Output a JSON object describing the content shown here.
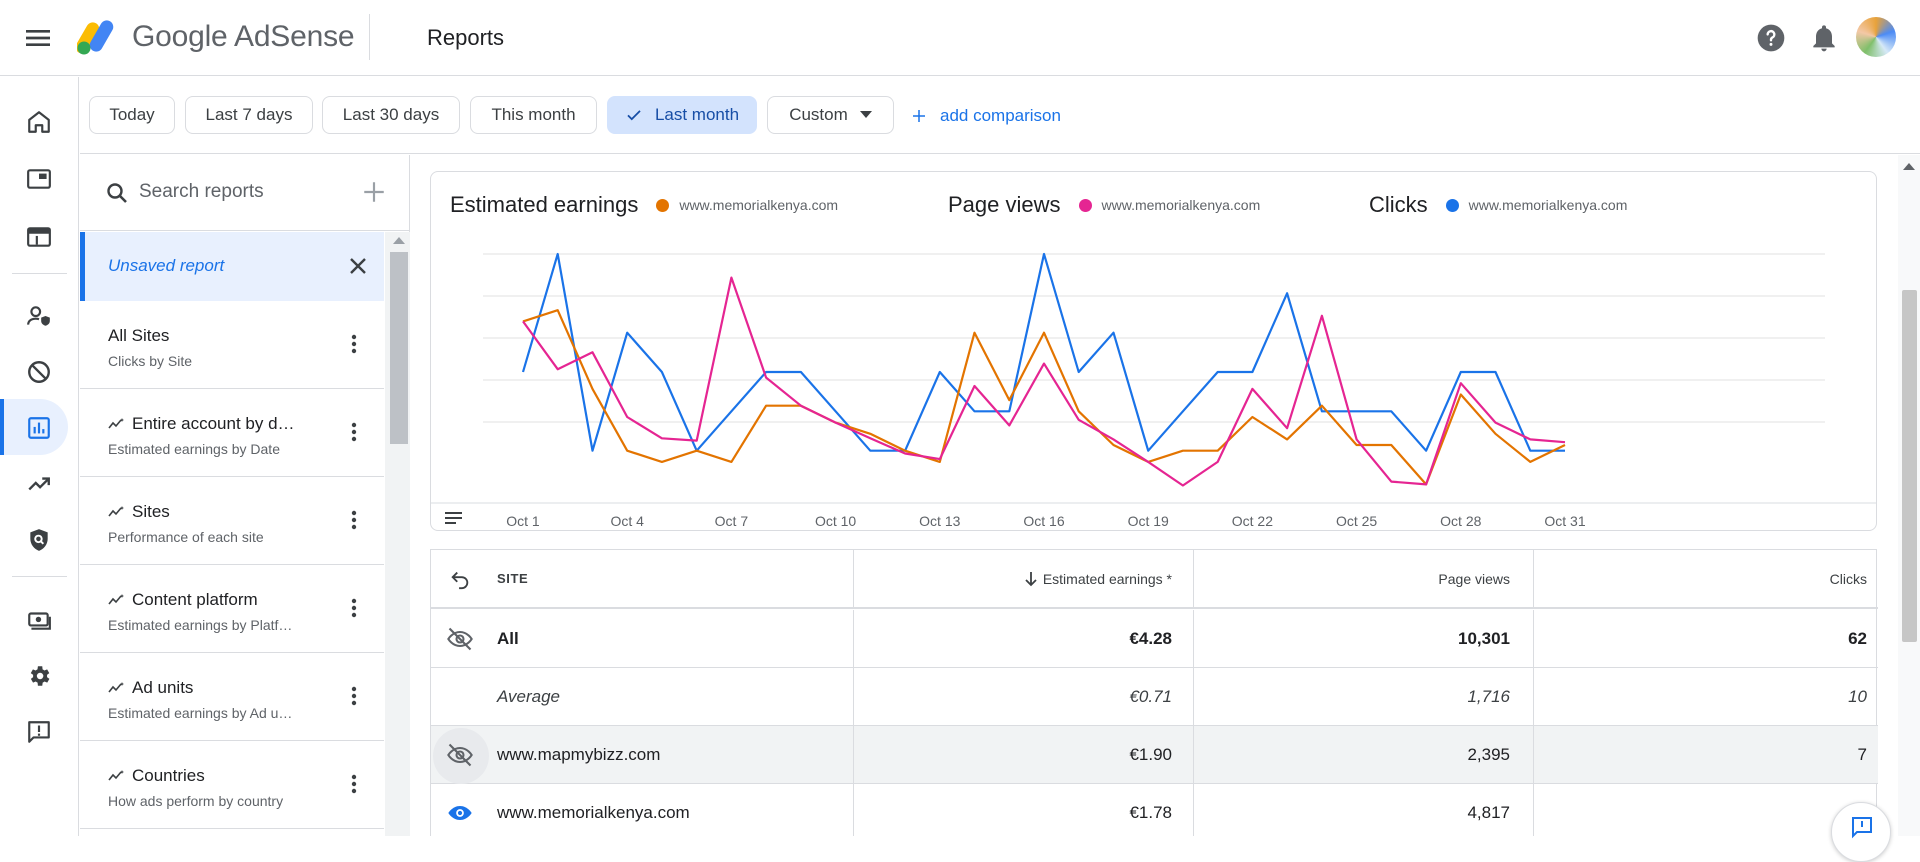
{
  "app": {
    "brand": "Google AdSense",
    "page_title": "Reports"
  },
  "date_filters": [
    {
      "label": "Today"
    },
    {
      "label": "Last 7 days"
    },
    {
      "label": "Last 30 days"
    },
    {
      "label": "This month"
    },
    {
      "label": "Last month",
      "selected": true
    },
    {
      "label": "Custom"
    }
  ],
  "add_comparison_label": "add comparison",
  "report_search": {
    "placeholder": "Search reports"
  },
  "unsaved_report": {
    "label": "Unsaved report"
  },
  "reports": [
    {
      "title": "All Sites",
      "subtitle": "Clicks by Site",
      "smart": false
    },
    {
      "title": "Entire account by d…",
      "subtitle": "Estimated earnings by Date",
      "smart": true
    },
    {
      "title": "Sites",
      "subtitle": "Performance of each site",
      "smart": true
    },
    {
      "title": "Content platform",
      "subtitle": "Estimated earnings by Platf…",
      "smart": true
    },
    {
      "title": "Ad units",
      "subtitle": "Estimated earnings by Ad u…",
      "smart": true
    },
    {
      "title": "Countries",
      "subtitle": "How ads perform by country",
      "smart": true
    }
  ],
  "legend": [
    {
      "metric": "Estimated earnings",
      "site": "www.memorialkenya.com",
      "color": "#e37400"
    },
    {
      "metric": "Page views",
      "site": "www.memorialkenya.com",
      "color": "#e52592"
    },
    {
      "metric": "Clicks",
      "site": "www.memorialkenya.com",
      "color": "#1a73e8"
    }
  ],
  "chart_data": {
    "type": "line",
    "x": [
      "Oct 1",
      "Oct 2",
      "Oct 3",
      "Oct 4",
      "Oct 5",
      "Oct 6",
      "Oct 7",
      "Oct 8",
      "Oct 9",
      "Oct 10",
      "Oct 11",
      "Oct 12",
      "Oct 13",
      "Oct 14",
      "Oct 15",
      "Oct 16",
      "Oct 17",
      "Oct 18",
      "Oct 19",
      "Oct 20",
      "Oct 21",
      "Oct 22",
      "Oct 23",
      "Oct 24",
      "Oct 25",
      "Oct 26",
      "Oct 27",
      "Oct 28",
      "Oct 29",
      "Oct 30",
      "Oct 31"
    ],
    "tick_labels": [
      "Oct 1",
      "Oct 4",
      "Oct 7",
      "Oct 10",
      "Oct 13",
      "Oct 16",
      "Oct 19",
      "Oct 22",
      "Oct 25",
      "Oct 28",
      "Oct 31"
    ],
    "series": [
      {
        "name": "Clicks",
        "color": "#1a73e8",
        "values": [
          3,
          6,
          1,
          4,
          3,
          1,
          2,
          3,
          3,
          2,
          1,
          1,
          3,
          2,
          2,
          6,
          3,
          4,
          1,
          2,
          3,
          3,
          5,
          2,
          2,
          2,
          1,
          3,
          3,
          1,
          1
        ]
      },
      {
        "name": "Estimated earnings",
        "color": "#e37400",
        "values": [
          0.3,
          0.32,
          0.18,
          0.07,
          0.05,
          0.07,
          0.05,
          0.15,
          0.15,
          0.12,
          0.1,
          0.07,
          0.05,
          0.28,
          0.16,
          0.28,
          0.14,
          0.08,
          0.05,
          0.07,
          0.07,
          0.13,
          0.09,
          0.15,
          0.08,
          0.08,
          0.01,
          0.17,
          0.1,
          0.05,
          0.08
        ]
      },
      {
        "name": "Page views",
        "color": "#e52592",
        "values": [
          300,
          215,
          245,
          130,
          92,
          88,
          378,
          200,
          150,
          120,
          92,
          65,
          55,
          185,
          115,
          225,
          125,
          90,
          50,
          8,
          50,
          180,
          110,
          310,
          90,
          15,
          10,
          190,
          120,
          90,
          85
        ]
      }
    ],
    "grid": true,
    "legend_position": "top"
  },
  "table": {
    "headers": {
      "site": "SITE",
      "earnings": "Estimated earnings *",
      "page_views": "Page views",
      "clicks": "Clicks"
    },
    "rows": [
      {
        "site": "All",
        "earnings": "€4.28",
        "page_views": "10,301",
        "clicks": "62",
        "style": "total",
        "visibility": "hidden"
      },
      {
        "site": "Average",
        "earnings": "€0.71",
        "page_views": "1,716",
        "clicks": "10",
        "style": "average",
        "visibility": "none"
      },
      {
        "site": "www.mapmybizz.com",
        "earnings": "€1.90",
        "page_views": "2,395",
        "clicks": "7",
        "style": "normal",
        "visibility": "hidden"
      },
      {
        "site": "www.memorialkenya.com",
        "earnings": "€1.78",
        "page_views": "4,817",
        "clicks": "",
        "style": "normal",
        "visibility": "visible"
      }
    ]
  }
}
